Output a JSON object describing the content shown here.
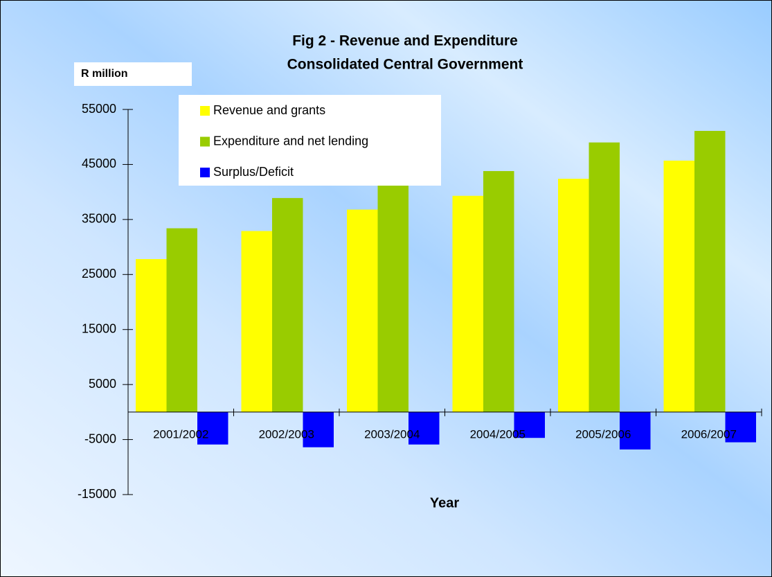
{
  "chart_data": {
    "type": "bar",
    "title": [
      "Fig 2 - Revenue and Expenditure",
      "Consolidated Central Government"
    ],
    "y_label": "R million",
    "x_label": "Year",
    "categories": [
      "2001/2002",
      "2002/2003",
      "2003/2004",
      "2004/2005",
      "2005/2006",
      "2006/2007"
    ],
    "series": [
      {
        "name": "Revenue and grants",
        "color": "#ffff00",
        "values": [
          27800,
          32900,
          36800,
          39300,
          42400,
          45700
        ]
      },
      {
        "name": "Expenditure and net lending",
        "color": "#99cc00",
        "values": [
          33400,
          38900,
          41500,
          43800,
          49000,
          51100
        ]
      },
      {
        "name": "Surplus/Deficit",
        "color": "#0000ff",
        "values": [
          -5900,
          -6400,
          -5900,
          -4700,
          -6800,
          -5500
        ]
      }
    ],
    "ylim": [
      -15000,
      55000
    ],
    "yticks": [
      55000,
      45000,
      35000,
      25000,
      15000,
      5000,
      -5000,
      -15000
    ],
    "legend": "upper left",
    "grid": false
  }
}
